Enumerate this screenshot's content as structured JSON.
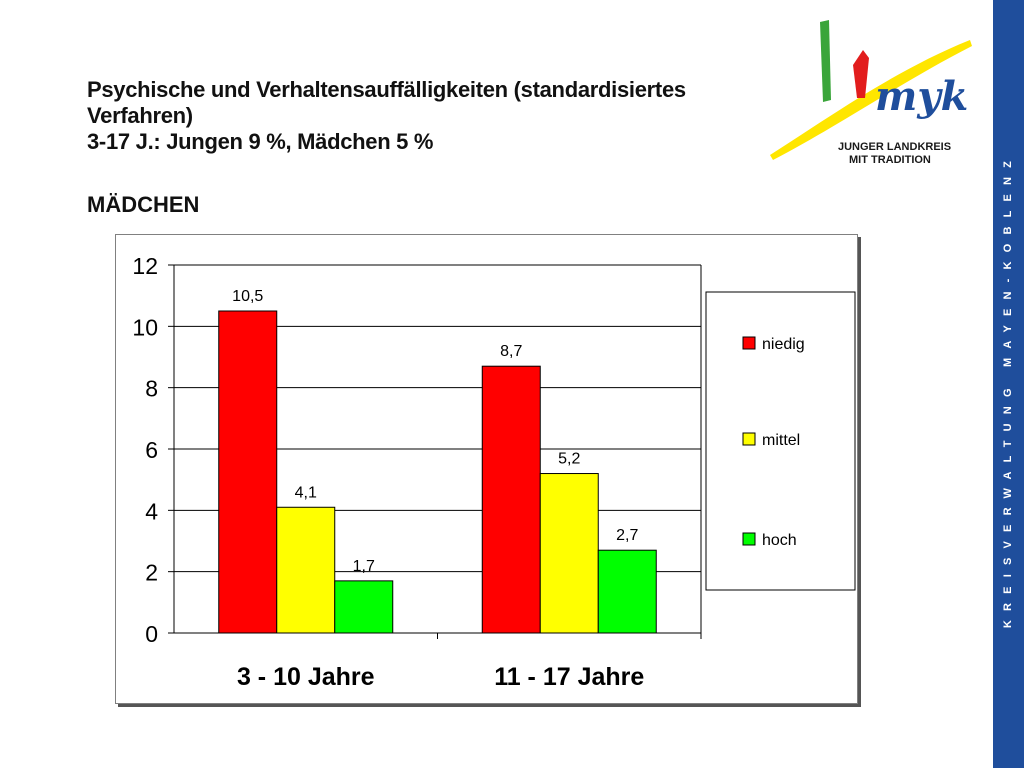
{
  "title_lines": [
    "Psychische und Verhaltensauffälligkeiten (standardisiertes",
    "Verfahren)",
    "3-17 J.: Jungen  9 %, Mädchen 5 %"
  ],
  "subtitle": "MÄDCHEN",
  "logo": {
    "brand": "myk",
    "tagline_line1": "JUNGER LANDKREIS",
    "tagline_line2": "MIT TRADITION"
  },
  "sidebar_text": "KREISVERWALTUNG MAYEN-KOBLENZ",
  "colors": {
    "niedig": "#ff0000",
    "mittel": "#ffff00",
    "hoch": "#00ff00",
    "sidebar": "#1f4e9c"
  },
  "chart_data": {
    "type": "bar",
    "categories": [
      "3 - 10 Jahre",
      "11 - 17 Jahre"
    ],
    "series": [
      {
        "name": "niedig",
        "values": [
          10.5,
          8.7
        ],
        "labels": [
          "10,5",
          "8,7"
        ]
      },
      {
        "name": "mittel",
        "values": [
          4.1,
          5.2
        ],
        "labels": [
          "4,1",
          "5,2"
        ]
      },
      {
        "name": "hoch",
        "values": [
          1.7,
          2.7
        ],
        "labels": [
          "1,7",
          "2,7"
        ]
      }
    ],
    "ylim": [
      0,
      12
    ],
    "yticks": [
      0,
      2,
      4,
      6,
      8,
      10,
      12
    ],
    "grid": true,
    "legend": "right"
  }
}
